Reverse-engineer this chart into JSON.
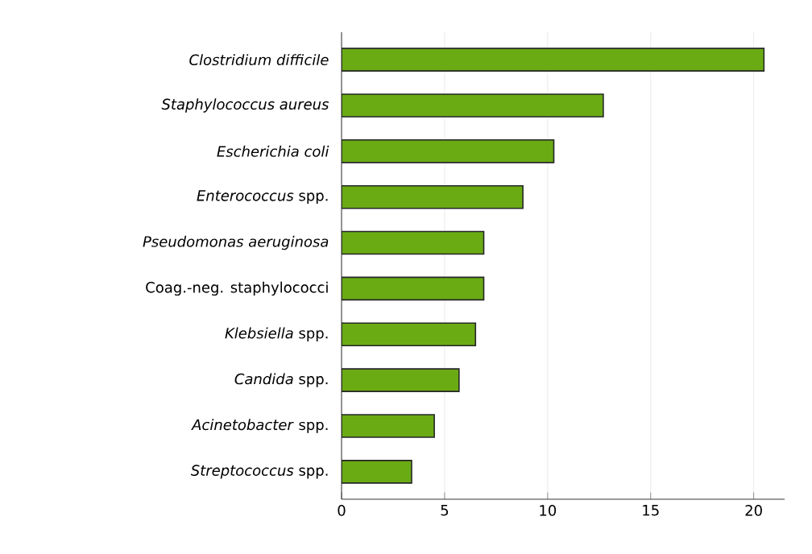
{
  "chart_data": {
    "type": "bar",
    "orientation": "horizontal",
    "categories": [
      "*Clostridium difficile*",
      "*Staphylococcus aureus*",
      "*Escherichia coli*",
      "*Enterococcus* spp.",
      "*Pseudomonas aeruginosa*",
      "Coag.-neg. staphylococci",
      "*Klebsiella* spp.",
      "*Candida* spp.",
      "*Acinetobacter* spp.",
      "*Streptococcus* spp."
    ],
    "values": [
      20.5,
      12.7,
      10.3,
      8.8,
      6.9,
      6.9,
      6.5,
      5.7,
      4.5,
      3.4
    ],
    "color": "#6aab14",
    "xlim": [
      0,
      21.5
    ],
    "xticks": [
      0,
      5,
      10,
      15,
      20
    ],
    "grid": "x"
  }
}
